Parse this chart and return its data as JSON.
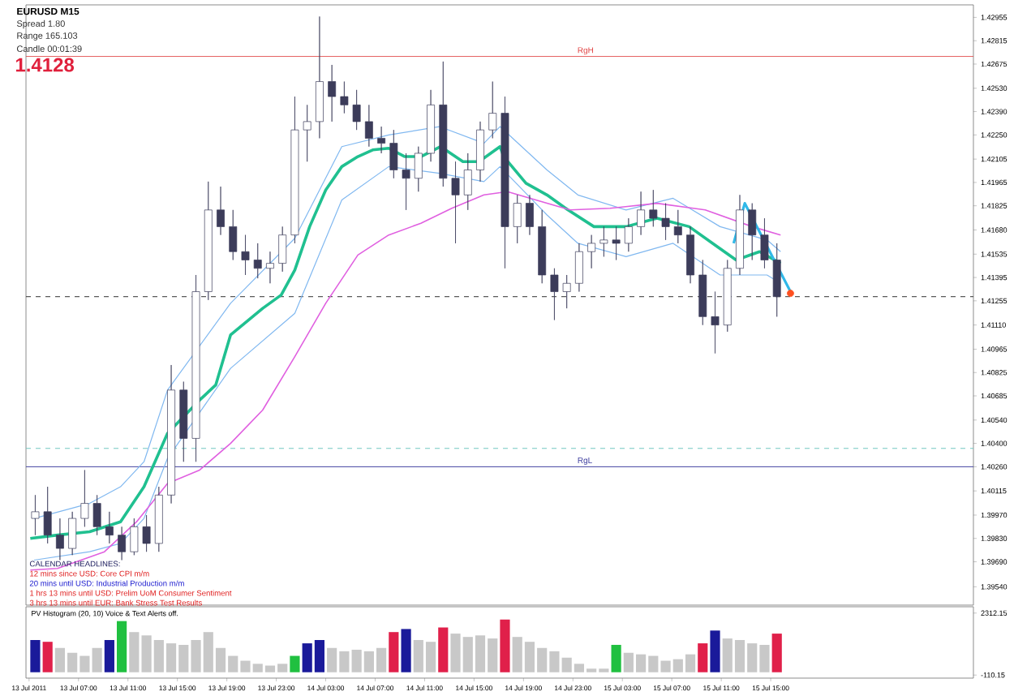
{
  "chart_data": [
    {
      "type": "candlestick",
      "color": "#3c3c5a",
      "tick_labels": "y",
      "x": [
        "2011-07-13T03:30",
        "2011-07-13T04:30",
        "2011-07-13T05:30",
        "2011-07-13T06:30",
        "2011-07-13T07:30",
        "2011-07-13T08:30",
        "2011-07-13T09:30",
        "2011-07-13T10:30",
        "2011-07-13T11:30",
        "2011-07-13T12:30",
        "2011-07-13T13:30",
        "2011-07-13T14:30",
        "2011-07-13T15:30",
        "2011-07-13T16:30",
        "2011-07-13T17:30",
        "2011-07-13T18:30",
        "2011-07-13T19:30",
        "2011-07-13T20:30",
        "2011-07-13T21:30",
        "2011-07-13T22:30",
        "2011-07-13T23:30",
        "2011-07-14T00:30",
        "2011-07-14T01:30",
        "2011-07-14T02:30",
        "2011-07-14T03:30",
        "2011-07-14T04:30",
        "2011-07-14T05:30",
        "2011-07-14T06:30",
        "2011-07-14T07:30",
        "2011-07-14T08:30",
        "2011-07-14T09:30",
        "2011-07-14T10:30",
        "2011-07-14T11:30",
        "2011-07-14T12:30",
        "2011-07-14T13:30",
        "2011-07-14T14:30",
        "2011-07-14T15:30",
        "2011-07-14T16:30",
        "2011-07-14T17:30",
        "2011-07-14T18:30",
        "2011-07-14T19:30",
        "2011-07-14T20:30",
        "2011-07-14T21:30",
        "2011-07-14T22:30",
        "2011-07-14T23:30",
        "2011-07-15T00:30",
        "2011-07-15T01:30",
        "2011-07-15T02:30",
        "2011-07-15T03:30",
        "2011-07-15T04:30",
        "2011-07-15T05:30",
        "2011-07-15T06:30",
        "2011-07-15T07:30",
        "2011-07-15T08:30",
        "2011-07-15T09:30",
        "2011-07-15T10:30",
        "2011-07-15T11:30",
        "2011-07-15T12:30",
        "2011-07-15T13:30",
        "2011-07-15T14:30",
        "2011-07-15T15:30"
      ],
      "ohlc": [
        [
          1.3995,
          1.4009,
          1.3985,
          1.3999
        ],
        [
          1.3999,
          1.4014,
          1.398,
          1.3985
        ],
        [
          1.3985,
          1.3995,
          1.397,
          1.3977
        ],
        [
          1.3977,
          1.3999,
          1.3973,
          1.3995
        ],
        [
          1.3995,
          1.4024,
          1.399,
          1.4004
        ],
        [
          1.4004,
          1.4009,
          1.3985,
          1.399
        ],
        [
          1.399,
          1.3999,
          1.398,
          1.3985
        ],
        [
          1.3985,
          1.399,
          1.397,
          1.3975
        ],
        [
          1.3975,
          1.3995,
          1.3973,
          1.399
        ],
        [
          1.399,
          1.3997,
          1.3975,
          1.398
        ],
        [
          1.398,
          1.4014,
          1.3975,
          1.4009
        ],
        [
          1.4009,
          1.4087,
          1.4004,
          1.4072
        ],
        [
          1.4072,
          1.4077,
          1.4029,
          1.4043
        ],
        [
          1.4043,
          1.4141,
          1.4029,
          1.4131
        ],
        [
          1.4131,
          1.4197,
          1.4126,
          1.418
        ],
        [
          1.418,
          1.4194,
          1.4165,
          1.417
        ],
        [
          1.417,
          1.418,
          1.415,
          1.4155
        ],
        [
          1.4155,
          1.4165,
          1.4141,
          1.415
        ],
        [
          1.415,
          1.416,
          1.4139,
          1.4145
        ],
        [
          1.4145,
          1.4155,
          1.4136,
          1.4148
        ],
        [
          1.4148,
          1.417,
          1.4143,
          1.4165
        ],
        [
          1.4165,
          1.4248,
          1.416,
          1.4228
        ],
        [
          1.4228,
          1.4243,
          1.4209,
          1.4233
        ],
        [
          1.4233,
          1.4296,
          1.4223,
          1.4257
        ],
        [
          1.4257,
          1.4267,
          1.4233,
          1.4248
        ],
        [
          1.4248,
          1.4257,
          1.4238,
          1.4243
        ],
        [
          1.4243,
          1.4252,
          1.4228,
          1.4233
        ],
        [
          1.4233,
          1.4243,
          1.4218,
          1.4223
        ],
        [
          1.4223,
          1.423,
          1.4214,
          1.422
        ],
        [
          1.422,
          1.4228,
          1.4199,
          1.4204
        ],
        [
          1.4204,
          1.4214,
          1.418,
          1.4199
        ],
        [
          1.4199,
          1.4218,
          1.4191,
          1.4214
        ],
        [
          1.4214,
          1.4252,
          1.4209,
          1.4243
        ],
        [
          1.4243,
          1.4269,
          1.4194,
          1.4199
        ],
        [
          1.4199,
          1.4209,
          1.416,
          1.4189
        ],
        [
          1.4189,
          1.4214,
          1.418,
          1.4204
        ],
        [
          1.4204,
          1.4233,
          1.4197,
          1.4228
        ],
        [
          1.4228,
          1.4257,
          1.4223,
          1.4238
        ],
        [
          1.4238,
          1.4248,
          1.4145,
          1.417
        ],
        [
          1.417,
          1.4189,
          1.416,
          1.4184
        ],
        [
          1.4184,
          1.4189,
          1.4165,
          1.417
        ],
        [
          1.417,
          1.418,
          1.4136,
          1.4141
        ],
        [
          1.4141,
          1.4145,
          1.4114,
          1.4131
        ],
        [
          1.4131,
          1.4141,
          1.4121,
          1.4136
        ],
        [
          1.4136,
          1.416,
          1.4131,
          1.4155
        ],
        [
          1.4155,
          1.4165,
          1.4145,
          1.416
        ],
        [
          1.416,
          1.417,
          1.4152,
          1.4162
        ],
        [
          1.4162,
          1.417,
          1.415,
          1.416
        ],
        [
          1.416,
          1.4175,
          1.4155,
          1.417
        ],
        [
          1.417,
          1.4191,
          1.4165,
          1.418
        ],
        [
          1.418,
          1.4192,
          1.417,
          1.4175
        ],
        [
          1.4175,
          1.4184,
          1.4162,
          1.417
        ],
        [
          1.417,
          1.418,
          1.416,
          1.4165
        ],
        [
          1.4165,
          1.417,
          1.4136,
          1.4141
        ],
        [
          1.4141,
          1.415,
          1.4111,
          1.4116
        ],
        [
          1.4116,
          1.4131,
          1.4094,
          1.4111
        ],
        [
          1.4111,
          1.415,
          1.4107,
          1.4145
        ],
        [
          1.4145,
          1.4189,
          1.4141,
          1.418
        ],
        [
          1.418,
          1.4184,
          1.415,
          1.4165
        ],
        [
          1.4165,
          1.4175,
          1.4145,
          1.415
        ],
        [
          1.415,
          1.416,
          1.4116,
          1.4128
        ]
      ],
      "series": [
        {
          "type": "line",
          "color": "#20c090",
          "x": [
            "2011-07-13T03:06",
            "2011-07-13T05:18",
            "2011-07-13T07:54",
            "2011-07-13T10:24",
            "2011-07-13T12:18",
            "2011-07-13T14:12",
            "2011-07-13T16:48",
            "2011-07-13T18:06",
            "2011-07-13T19:18",
            "2011-07-13T21:54",
            "2011-07-13T23:24",
            "2011-07-14T00:30",
            "2011-07-14T01:42",
            "2011-07-14T03:00",
            "2011-07-14T04:18",
            "2011-07-14T05:36",
            "2011-07-14T06:48",
            "2011-07-14T08:06",
            "2011-07-14T09:24",
            "2011-07-14T10:42",
            "2011-07-14T12:18",
            "2011-07-14T14:06",
            "2011-07-14T15:24",
            "2011-07-14T17:06",
            "2011-07-14T17:24",
            "2011-07-14T19:12",
            "2011-07-14T20:54",
            "2011-07-14T22:36",
            "2011-07-15T00:42",
            "2011-07-15T03:18",
            "2011-07-15T05:48",
            "2011-07-15T08:24",
            "2011-07-15T10:18",
            "2011-07-15T12:12",
            "2011-07-15T14:06",
            "2011-07-15T15:48"
          ],
          "values": [
            1.3983,
            1.3985,
            1.3987,
            1.3993,
            1.4014,
            1.4046,
            1.4066,
            1.4075,
            1.4105,
            1.4121,
            1.4129,
            1.4144,
            1.417,
            1.4192,
            1.4206,
            1.4212,
            1.4216,
            1.4217,
            1.4212,
            1.4212,
            1.4218,
            1.4209,
            1.4209,
            1.4218,
            1.4212,
            1.4196,
            1.4189,
            1.418,
            1.417,
            1.417,
            1.4175,
            1.417,
            1.416,
            1.415,
            1.4155,
            1.4148
          ]
        },
        {
          "type": "line",
          "color": "#80b8f0",
          "x": [
            "2011-07-13T03:24",
            "2011-07-13T07:54",
            "2011-07-13T10:24",
            "2011-07-13T12:18",
            "2011-07-13T14:12",
            "2011-07-13T19:18",
            "2011-07-14T00:30",
            "2011-07-14T04:18",
            "2011-07-14T08:06",
            "2011-07-14T12:12",
            "2011-07-14T15:48",
            "2011-07-14T17:06",
            "2011-07-14T20:54",
            "2011-07-14T23:24",
            "2011-07-15T03:18",
            "2011-07-15T07:06",
            "2011-07-15T10:54",
            "2011-07-15T14:42",
            "2011-07-15T15:48"
          ],
          "values": [
            1.3995,
            1.4004,
            1.4014,
            1.4029,
            1.4072,
            1.4124,
            1.4163,
            1.4218,
            1.4225,
            1.423,
            1.422,
            1.423,
            1.4204,
            1.4189,
            1.418,
            1.4187,
            1.417,
            1.4162,
            1.4155
          ]
        },
        {
          "type": "line",
          "color": "#80b8f0",
          "x": [
            "2011-07-13T03:24",
            "2011-07-13T07:54",
            "2011-07-13T10:24",
            "2011-07-13T12:18",
            "2011-07-13T14:12",
            "2011-07-13T19:18",
            "2011-07-14T00:30",
            "2011-07-14T04:18",
            "2011-07-14T08:06",
            "2011-07-14T12:12",
            "2011-07-14T15:48",
            "2011-07-14T17:06",
            "2011-07-14T20:54",
            "2011-07-14T23:24",
            "2011-07-15T03:18",
            "2011-07-15T07:06",
            "2011-07-15T10:54",
            "2011-07-15T14:42",
            "2011-07-15T15:48"
          ],
          "values": [
            1.397,
            1.3975,
            1.398,
            1.3995,
            1.4031,
            1.4085,
            1.4118,
            1.4186,
            1.4206,
            1.4202,
            1.4197,
            1.4206,
            1.4177,
            1.416,
            1.4152,
            1.416,
            1.4141,
            1.4141,
            1.4136
          ]
        },
        {
          "type": "line",
          "color": "#e060e0",
          "x": [
            "2011-07-13T03:06",
            "2011-07-13T05:18",
            "2011-07-13T09:06",
            "2011-07-13T11:42",
            "2011-07-13T14:12",
            "2011-07-13T16:48",
            "2011-07-13T19:18",
            "2011-07-13T21:54",
            "2011-07-14T00:30",
            "2011-07-14T03:00",
            "2011-07-14T05:36",
            "2011-07-14T08:06",
            "2011-07-14T10:42",
            "2011-07-14T13:12",
            "2011-07-14T15:48",
            "2011-07-14T17:42",
            "2011-07-14T20:54",
            "2011-07-14T22:48",
            "2011-07-15T02:00",
            "2011-07-15T05:48",
            "2011-07-15T09:42",
            "2011-07-15T13:30",
            "2011-07-15T15:48"
          ],
          "values": [
            1.3964,
            1.3965,
            1.3975,
            1.3993,
            1.4016,
            1.4024,
            1.404,
            1.406,
            1.4092,
            1.4124,
            1.4153,
            1.4165,
            1.4172,
            1.4181,
            1.4189,
            1.4191,
            1.4184,
            1.418,
            1.4181,
            1.4184,
            1.418,
            1.417,
            1.4165
          ]
        },
        {
          "type": "line",
          "color": "#30b8e8",
          "x": [
            "2011-07-15T12:00",
            "2011-07-15T12:54",
            "2011-07-15T16:36"
          ],
          "values": [
            1.416,
            1.4184,
            1.4131
          ]
        },
        {
          "type": "scatter",
          "color": "#ff5020",
          "marker": "circle",
          "x": [
            "2011-07-15T16:36"
          ],
          "values": [
            1.413
          ]
        }
      ],
      "xlim": [
        "2011-07-13T02:45",
        "2011-07-16T07:24"
      ],
      "ylim": [
        1.3943,
        1.4303
      ],
      "yticks": [
        {
          "value": 1.42955,
          "label": "1.42955"
        },
        {
          "value": 1.42815,
          "label": "1.42815"
        },
        {
          "value": 1.42675,
          "label": "1.42675"
        },
        {
          "value": 1.4253,
          "label": "1.42530"
        },
        {
          "value": 1.4239,
          "label": "1.42390"
        },
        {
          "value": 1.4225,
          "label": "1.42250"
        },
        {
          "value": 1.42105,
          "label": "1.42105"
        },
        {
          "value": 1.41965,
          "label": "1.41965"
        },
        {
          "value": 1.41825,
          "label": "1.41825"
        },
        {
          "value": 1.4168,
          "label": "1.41680"
        },
        {
          "value": 1.41535,
          "label": "1.41535"
        },
        {
          "value": 1.41395,
          "label": "1.41395"
        },
        {
          "value": 1.41255,
          "label": "1.41255"
        },
        {
          "value": 1.4111,
          "label": "1.41110"
        },
        {
          "value": 1.40965,
          "label": "1.40965"
        },
        {
          "value": 1.40825,
          "label": "1.40825"
        },
        {
          "value": 1.40685,
          "label": "1.40685"
        },
        {
          "value": 1.4054,
          "label": "1.40540"
        },
        {
          "value": 1.404,
          "label": "1.40400"
        },
        {
          "value": 1.4026,
          "label": "1.40260"
        },
        {
          "value": 1.40115,
          "label": "1.40115"
        },
        {
          "value": 1.3997,
          "label": "1.39970"
        },
        {
          "value": 1.3983,
          "label": "1.39830"
        },
        {
          "value": 1.3969,
          "label": "1.39690"
        },
        {
          "value": 1.3954,
          "label": "1.39540"
        }
      ],
      "ref_lines": [
        {
          "axis": "y",
          "value": 1.4128,
          "color": "#303030",
          "line_style": "dashed"
        },
        {
          "axis": "y",
          "value": 1.4037,
          "color": "#70c8c0",
          "line_style": "dashed"
        },
        {
          "axis": "y",
          "value": 1.4272,
          "label": "RgH",
          "color": "#e04040",
          "line_style": "solid"
        },
        {
          "axis": "y",
          "value": 1.4026,
          "label": "RgL",
          "color": "#4040a0",
          "line_style": "solid"
        }
      ],
      "annotations": [
        "EURUSD M15",
        "Spread 1.80",
        "Range 165.103",
        "Candle 00:01:39",
        "1.4128",
        "CALENDAR HEADLINES:",
        "12 mins since USD: Core CPI m/m",
        "20 mins until USD: Industrial Production m/m",
        "1 hrs 13 mins until USD: Prelim UoM Consumer Sentiment",
        "3 hrs 13 mins until EUR: Bank Stress Test Results"
      ]
    },
    {
      "type": "bar",
      "title": "PV Histogram (20, 10) Voice & Text Alerts off.",
      "x": [
        "2011-07-13T03:30",
        "2011-07-13T04:30",
        "2011-07-13T05:30",
        "2011-07-13T06:30",
        "2011-07-13T07:30",
        "2011-07-13T08:30",
        "2011-07-13T09:30",
        "2011-07-13T10:30",
        "2011-07-13T11:30",
        "2011-07-13T12:30",
        "2011-07-13T13:30",
        "2011-07-13T14:30",
        "2011-07-13T15:30",
        "2011-07-13T16:30",
        "2011-07-13T17:30",
        "2011-07-13T18:30",
        "2011-07-13T19:30",
        "2011-07-13T20:30",
        "2011-07-13T21:30",
        "2011-07-13T22:30",
        "2011-07-13T23:30",
        "2011-07-14T00:30",
        "2011-07-14T01:30",
        "2011-07-14T02:30",
        "2011-07-14T03:30",
        "2011-07-14T04:30",
        "2011-07-14T05:30",
        "2011-07-14T06:30",
        "2011-07-14T07:30",
        "2011-07-14T08:30",
        "2011-07-14T09:30",
        "2011-07-14T10:30",
        "2011-07-14T11:30",
        "2011-07-14T12:30",
        "2011-07-14T13:30",
        "2011-07-14T14:30",
        "2011-07-14T15:30",
        "2011-07-14T16:30",
        "2011-07-14T17:30",
        "2011-07-14T18:30",
        "2011-07-14T19:30",
        "2011-07-14T20:30",
        "2011-07-14T21:30",
        "2011-07-14T22:30",
        "2011-07-14T23:30",
        "2011-07-15T00:30",
        "2011-07-15T01:30",
        "2011-07-15T02:30",
        "2011-07-15T03:30",
        "2011-07-15T04:30",
        "2011-07-15T05:30",
        "2011-07-15T06:30",
        "2011-07-15T07:30",
        "2011-07-15T08:30",
        "2011-07-15T09:30",
        "2011-07-15T10:30",
        "2011-07-15T11:30",
        "2011-07-15T12:30",
        "2011-07-15T13:30",
        "2011-07-15T14:30",
        "2011-07-15T15:30"
      ],
      "values": [
        1260,
        1190,
        950,
        760,
        640,
        950,
        1260,
        2000,
        1570,
        1440,
        1260,
        1130,
        1070,
        1260,
        1570,
        950,
        640,
        450,
        330,
        260,
        330,
        640,
        1130,
        1260,
        950,
        820,
        880,
        820,
        950,
        1570,
        1690,
        1260,
        1190,
        1750,
        1510,
        1380,
        1440,
        1320,
        2060,
        1380,
        1190,
        950,
        820,
        570,
        330,
        140,
        140,
        1070,
        760,
        700,
        640,
        450,
        510,
        700,
        1130,
        1630,
        1320,
        1260,
        1130,
        1070,
        1510
      ],
      "colors": [
        "#1a1a9a",
        "#e0204a",
        "#c8c8c8",
        "#c8c8c8",
        "#c8c8c8",
        "#c8c8c8",
        "#1a1a9a",
        "#20c040",
        "#c8c8c8",
        "#c8c8c8",
        "#c8c8c8",
        "#c8c8c8",
        "#c8c8c8",
        "#c8c8c8",
        "#c8c8c8",
        "#c8c8c8",
        "#c8c8c8",
        "#c8c8c8",
        "#c8c8c8",
        "#c8c8c8",
        "#c8c8c8",
        "#20c040",
        "#1a1a9a",
        "#1a1a9a",
        "#c8c8c8",
        "#c8c8c8",
        "#c8c8c8",
        "#c8c8c8",
        "#c8c8c8",
        "#e0204a",
        "#1a1a9a",
        "#c8c8c8",
        "#c8c8c8",
        "#e0204a",
        "#c8c8c8",
        "#c8c8c8",
        "#c8c8c8",
        "#c8c8c8",
        "#e0204a",
        "#c8c8c8",
        "#c8c8c8",
        "#c8c8c8",
        "#c8c8c8",
        "#c8c8c8",
        "#c8c8c8",
        "#c8c8c8",
        "#c8c8c8",
        "#20c040",
        "#c8c8c8",
        "#c8c8c8",
        "#c8c8c8",
        "#c8c8c8",
        "#c8c8c8",
        "#c8c8c8",
        "#e0204a",
        "#1a1a9a",
        "#c8c8c8",
        "#c8c8c8",
        "#c8c8c8",
        "#c8c8c8",
        "#e0204a"
      ],
      "xlim": [
        "2011-07-13T02:45",
        "2011-07-16T07:24"
      ],
      "ylim": [
        -230,
        2560
      ],
      "xticks": [
        {
          "value": "2011-07-13T03:00",
          "label": "13 Jul 2011"
        },
        {
          "value": "2011-07-13T07:00",
          "label": "13 Jul 07:00"
        },
        {
          "value": "2011-07-13T11:00",
          "label": "13 Jul 11:00"
        },
        {
          "value": "2011-07-13T15:00",
          "label": "13 Jul 15:00"
        },
        {
          "value": "2011-07-13T19:00",
          "label": "13 Jul 19:00"
        },
        {
          "value": "2011-07-13T23:00",
          "label": "13 Jul 23:00"
        },
        {
          "value": "2011-07-14T03:00",
          "label": "14 Jul 03:00"
        },
        {
          "value": "2011-07-14T07:00",
          "label": "14 Jul 07:00"
        },
        {
          "value": "2011-07-14T11:00",
          "label": "14 Jul 11:00"
        },
        {
          "value": "2011-07-14T15:00",
          "label": "14 Jul 15:00"
        },
        {
          "value": "2011-07-14T19:00",
          "label": "14 Jul 19:00"
        },
        {
          "value": "2011-07-14T23:00",
          "label": "14 Jul 23:00"
        },
        {
          "value": "2011-07-15T03:00",
          "label": "15 Jul 03:00"
        },
        {
          "value": "2011-07-15T07:00",
          "label": "15 Jul 07:00"
        },
        {
          "value": "2011-07-15T11:00",
          "label": "15 Jul 11:00"
        },
        {
          "value": "2011-07-15T15:00",
          "label": "15 Jul 15:00"
        }
      ],
      "yticks": [
        2312.15,
        -110.15
      ]
    }
  ]
}
